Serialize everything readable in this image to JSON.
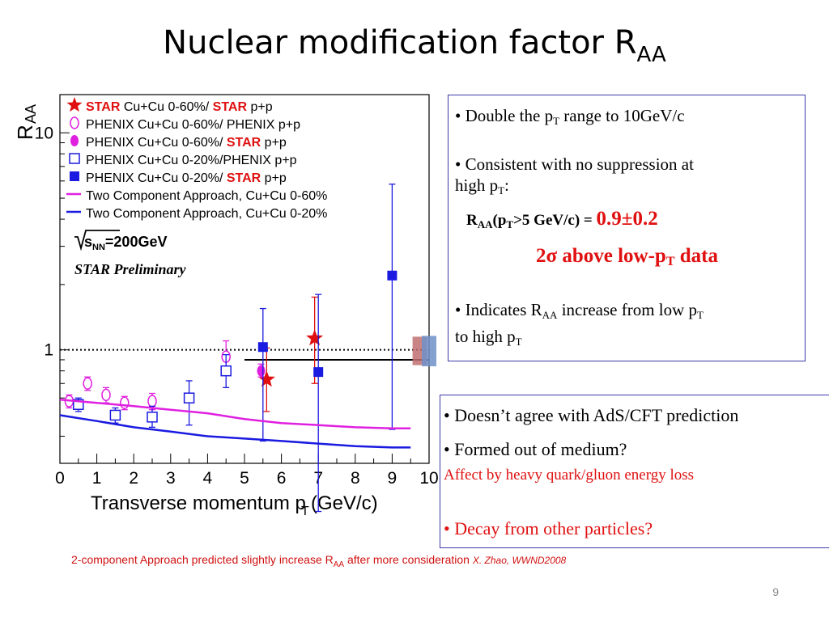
{
  "slide": {
    "title_main": "Nuclear modification factor R",
    "title_sub": "AA",
    "page_number": "9"
  },
  "box1": {
    "b1_pre": "• Double the p",
    "b1_sub": "T",
    "b1_post": " range to 10GeV/c",
    "b2_line1": "• Consistent with no suppression at",
    "b2_line2_pre": "high p",
    "b2_line2_sub": "T",
    "b2_line2_post": ":",
    "raa_label": "R",
    "raa_sub": "AA",
    "raa_paren_open": "(p",
    "raa_paren_sub": "T",
    "raa_paren_post": ">5 GeV/c) = ",
    "raa_value": "0.9±0.2",
    "sigma_pre": "2",
    "sigma_sym": "σ",
    "sigma_post": " above low-p",
    "sigma_sub": "T",
    "sigma_end": " data",
    "b3_pre": "• Indicates R",
    "b3_sub": "AA",
    "b3_mid": " increase from low p",
    "b3_sub2": "T",
    "b3_line2_pre": "to high p",
    "b3_line2_sub": "T"
  },
  "box2": {
    "l1": "• Doesn’t agree with AdS/CFT prediction",
    "l2": "• Formed out of medium?",
    "l3": "Affect by heavy quark/gluon energy loss",
    "l4": "• Decay from other particles?"
  },
  "footnote": {
    "text_pre": "2-component Approach predicted slightly increase R",
    "text_sub": "AA",
    "text_post": " after more consideration ",
    "cite": "X. Zhao, WWND2008"
  },
  "chart_data": {
    "type": "scatter",
    "ylabel_main": "R",
    "ylabel_sub": "AA",
    "xlabel_main": "Transverse momentum p",
    "xlabel_sub": "T",
    "xlabel_post": " (GeV/c)",
    "xlim": [
      0,
      10
    ],
    "ylim": [
      0.3,
      15
    ],
    "log_y": true,
    "x_ticks": [
      "0",
      "1",
      "2",
      "3",
      "4",
      "5",
      "6",
      "7",
      "8",
      "9",
      "10"
    ],
    "y_ticks": [
      {
        "v": 1,
        "label": "1"
      },
      {
        "v": 10,
        "label": "10"
      }
    ],
    "sqrt_s": "s",
    "sqrt_sub": "NN",
    "sqrt_post": "=200GeV",
    "preliminary": "STAR Preliminary",
    "legend": [
      {
        "marker": "star-red",
        "parts": [
          [
            "STAR",
            "red"
          ],
          [
            " Cu+Cu 0-60%/ ",
            "black"
          ],
          [
            "STAR",
            "red"
          ],
          [
            " p+p",
            "black"
          ]
        ]
      },
      {
        "marker": "circle-open-magenta",
        "parts": [
          [
            "PHENIX Cu+Cu 0-60%/ PHENIX p+p",
            "black"
          ]
        ]
      },
      {
        "marker": "circle-filled-magenta",
        "parts": [
          [
            "PHENIX Cu+Cu 0-60%/ ",
            "black"
          ],
          [
            "STAR",
            "red"
          ],
          [
            " p+p",
            "black"
          ]
        ]
      },
      {
        "marker": "square-open-blue",
        "parts": [
          [
            "PHENIX Cu+Cu 0-20%/PHENIX p+p",
            "black"
          ]
        ]
      },
      {
        "marker": "square-filled-blue",
        "parts": [
          [
            "PHENIX Cu+Cu 0-20%/ ",
            "black"
          ],
          [
            "STAR",
            "red"
          ],
          [
            " p+p",
            "black"
          ]
        ]
      },
      {
        "marker": "line-magenta",
        "parts": [
          [
            "Two Component Approach, Cu+Cu 0-60%",
            "black"
          ]
        ]
      },
      {
        "marker": "line-blue",
        "parts": [
          [
            "Two Component Approach, Cu+Cu 0-20%",
            "black"
          ]
        ]
      }
    ],
    "series": [
      {
        "name": "STAR Cu+Cu 0-60%/ STAR p+p",
        "color": "#e01010",
        "marker": "star",
        "points": [
          {
            "x": 5.6,
            "y": 0.73,
            "lo": 0.52,
            "hi": 1.02
          },
          {
            "x": 6.9,
            "y": 1.13,
            "lo": 0.7,
            "hi": 1.75
          }
        ]
      },
      {
        "name": "PHENIX Cu+Cu 0-60%/ PHENIX p+p",
        "color": "#e020e0",
        "marker": "circle-open",
        "points": [
          {
            "x": 0.25,
            "y": 0.58,
            "lo": 0.54,
            "hi": 0.62
          },
          {
            "x": 0.75,
            "y": 0.7,
            "lo": 0.65,
            "hi": 0.75
          },
          {
            "x": 1.25,
            "y": 0.62,
            "lo": 0.57,
            "hi": 0.67
          },
          {
            "x": 1.75,
            "y": 0.57,
            "lo": 0.53,
            "hi": 0.61
          },
          {
            "x": 2.5,
            "y": 0.58,
            "lo": 0.53,
            "hi": 0.63
          },
          {
            "x": 4.5,
            "y": 0.93,
            "lo": 0.78,
            "hi": 1.1
          }
        ]
      },
      {
        "name": "PHENIX Cu+Cu 0-60%/ STAR p+p",
        "color": "#e020e0",
        "marker": "circle-filled",
        "points": [
          {
            "x": 5.45,
            "y": 0.8,
            "lo": 0.75,
            "hi": 0.86
          }
        ]
      },
      {
        "name": "PHENIX Cu+Cu 0-20%/PHENIX p+p",
        "color": "#1a1ae0",
        "marker": "square-open",
        "points": [
          {
            "x": 0.5,
            "y": 0.56,
            "lo": 0.52,
            "hi": 0.6
          },
          {
            "x": 1.5,
            "y": 0.5,
            "lo": 0.46,
            "hi": 0.54
          },
          {
            "x": 2.5,
            "y": 0.49,
            "lo": 0.44,
            "hi": 0.55
          },
          {
            "x": 3.5,
            "y": 0.6,
            "lo": 0.45,
            "hi": 0.72
          },
          {
            "x": 4.5,
            "y": 0.8,
            "lo": 0.67,
            "hi": 0.95
          }
        ]
      },
      {
        "name": "PHENIX Cu+Cu 0-20%/ STAR p+p",
        "color": "#1a1ae0",
        "marker": "square-filled",
        "points": [
          {
            "x": 5.5,
            "y": 1.03,
            "lo": 0.38,
            "hi": 1.55
          },
          {
            "x": 7.0,
            "y": 0.79,
            "lo": 0.18,
            "hi": 1.8
          },
          {
            "x": 9.0,
            "y": 2.2,
            "lo": 0.43,
            "hi": 5.8
          }
        ]
      },
      {
        "name": "Two Component Approach, Cu+Cu 0-60%",
        "color": "#e020e0",
        "marker": "line",
        "x": [
          0,
          1,
          2,
          3,
          4,
          5,
          6,
          7,
          8,
          9,
          9.5
        ],
        "y": [
          0.59,
          0.57,
          0.55,
          0.53,
          0.51,
          0.48,
          0.46,
          0.45,
          0.44,
          0.435,
          0.435
        ]
      },
      {
        "name": "Two Component Approach, Cu+Cu 0-20%",
        "color": "#1a1ae0",
        "marker": "line",
        "x": [
          0,
          1,
          2,
          3,
          4,
          5,
          6,
          7,
          8,
          9,
          9.5
        ],
        "y": [
          0.5,
          0.47,
          0.44,
          0.42,
          0.4,
          0.39,
          0.38,
          0.37,
          0.36,
          0.355,
          0.355
        ]
      }
    ],
    "reference_lines": [
      {
        "y": 1.0,
        "style": "dotted"
      },
      {
        "y": 0.9,
        "style": "solid",
        "x_from": 5.0,
        "x_to": 10
      }
    ],
    "systematic_boxes": [
      {
        "x": 9.75,
        "y": 1.0,
        "color": "#c07070",
        "lo": 0.85,
        "hi": 1.15
      },
      {
        "x": 10.0,
        "y": 1.0,
        "color": "#7090c8",
        "lo": 0.84,
        "hi": 1.16
      }
    ],
    "colors": {
      "star": "#e01010",
      "phenix_magenta": "#e020e0",
      "phenix_blue": "#1a1ae0"
    }
  }
}
